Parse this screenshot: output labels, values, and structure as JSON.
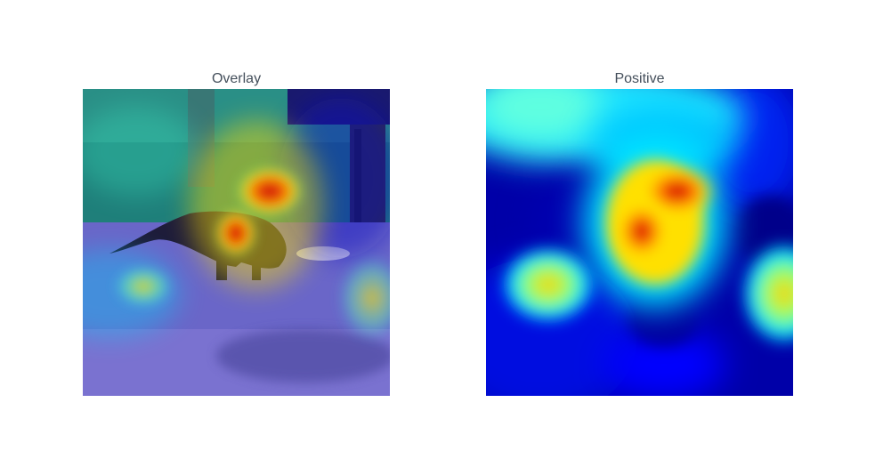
{
  "panels": [
    {
      "title": "Overlay"
    },
    {
      "title": "Positive"
    }
  ],
  "colormap": "jet"
}
